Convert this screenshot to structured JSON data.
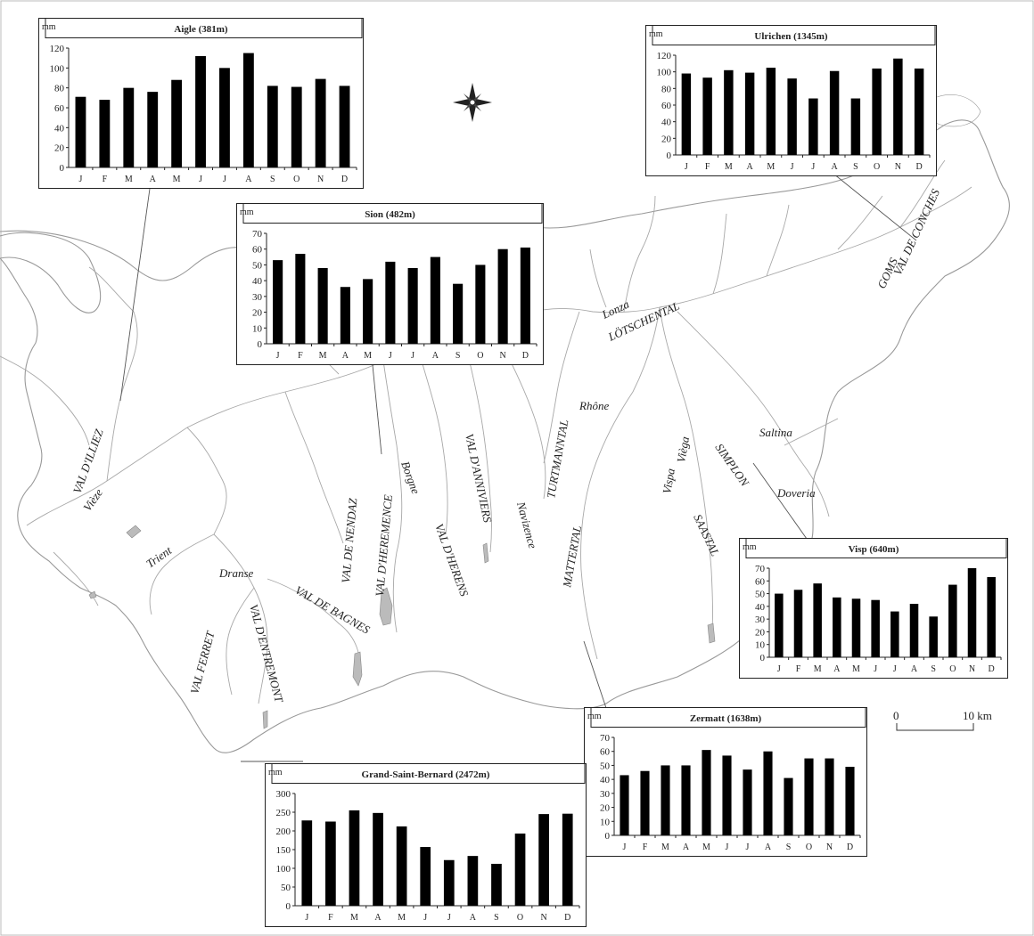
{
  "map": {
    "valley_labels": [
      "VAL D'ILLIEZ",
      "Vièze",
      "Trient",
      "Dranse",
      "VAL FERRET",
      "VAL D'ENTREMONT",
      "VAL DE BAGNES",
      "VAL DE NENDAZ",
      "VAL D'HEREMENCE",
      "Borgne",
      "VAL D'HERENS",
      "VAL D'ANNIVIERS",
      "Navizence",
      "TURTMANNTAL",
      "Rhône",
      "Lonza",
      "LÖTSCHENTAL",
      "MATTERTAL",
      "Vispa",
      "Vièga",
      "SAASTAL",
      "SIMPLON",
      "Doveria",
      "Saltina",
      "GOMS",
      "VAL DE CONCHES"
    ],
    "scale": {
      "zero": "0",
      "end": "10 km"
    },
    "compass": "compass-rose"
  },
  "units": "mm",
  "months": [
    "J",
    "F",
    "M",
    "A",
    "M",
    "J",
    "J",
    "A",
    "S",
    "O",
    "N",
    "D"
  ],
  "chart_data": [
    {
      "type": "bar",
      "title": "Aigle (381m)",
      "ylabel": "mm",
      "categories": [
        "J",
        "F",
        "M",
        "A",
        "M",
        "J",
        "J",
        "A",
        "S",
        "O",
        "N",
        "D"
      ],
      "values": [
        71,
        68,
        80,
        76,
        88,
        112,
        100,
        115,
        82,
        81,
        89,
        82
      ],
      "ylim": [
        0,
        120
      ],
      "yticks": [
        0,
        20,
        40,
        60,
        80,
        100,
        120
      ]
    },
    {
      "type": "bar",
      "title": "Ulrichen (1345m)",
      "ylabel": "mm",
      "categories": [
        "J",
        "F",
        "M",
        "A",
        "M",
        "J",
        "J",
        "A",
        "S",
        "O",
        "N",
        "D"
      ],
      "values": [
        98,
        93,
        102,
        99,
        105,
        92,
        68,
        101,
        68,
        104,
        116,
        104
      ],
      "ylim": [
        0,
        120
      ],
      "yticks": [
        0,
        20,
        40,
        60,
        80,
        100,
        120
      ]
    },
    {
      "type": "bar",
      "title": "Sion (482m)",
      "ylabel": "mm",
      "categories": [
        "J",
        "F",
        "M",
        "A",
        "M",
        "J",
        "J",
        "A",
        "S",
        "O",
        "N",
        "D"
      ],
      "values": [
        53,
        57,
        48,
        36,
        41,
        52,
        48,
        55,
        38,
        50,
        60,
        61
      ],
      "ylim": [
        0,
        70
      ],
      "yticks": [
        0,
        10,
        20,
        30,
        40,
        50,
        60,
        70
      ]
    },
    {
      "type": "bar",
      "title": "Visp (640m)",
      "ylabel": "mm",
      "categories": [
        "J",
        "F",
        "M",
        "A",
        "M",
        "J",
        "J",
        "A",
        "S",
        "O",
        "N",
        "D"
      ],
      "values": [
        50,
        53,
        58,
        47,
        46,
        45,
        36,
        42,
        32,
        57,
        70,
        63
      ],
      "ylim": [
        0,
        70
      ],
      "yticks": [
        0,
        10,
        20,
        30,
        40,
        50,
        60,
        70
      ]
    },
    {
      "type": "bar",
      "title": "Zermatt (1638m)",
      "ylabel": "mm",
      "categories": [
        "J",
        "F",
        "M",
        "A",
        "M",
        "J",
        "J",
        "A",
        "S",
        "O",
        "N",
        "D"
      ],
      "values": [
        43,
        46,
        50,
        50,
        61,
        57,
        47,
        60,
        41,
        55,
        55,
        49
      ],
      "ylim": [
        0,
        70
      ],
      "yticks": [
        0,
        10,
        20,
        30,
        40,
        50,
        60,
        70
      ]
    },
    {
      "type": "bar",
      "title": "Grand-Saint-Bernard (2472m)",
      "ylabel": "mm",
      "categories": [
        "J",
        "F",
        "M",
        "A",
        "M",
        "J",
        "J",
        "A",
        "S",
        "O",
        "N",
        "D"
      ],
      "values": [
        228,
        225,
        255,
        248,
        212,
        157,
        122,
        133,
        112,
        193,
        245,
        246
      ],
      "ylim": [
        0,
        300
      ],
      "yticks": [
        0,
        50,
        100,
        150,
        200,
        250,
        300
      ]
    }
  ]
}
